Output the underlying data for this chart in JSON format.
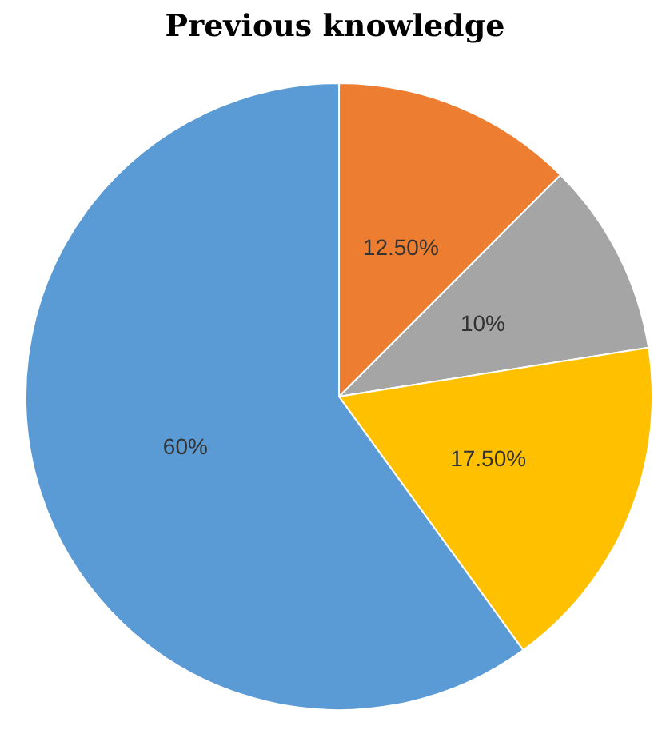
{
  "chart_data": {
    "type": "pie",
    "title": "Previous knowledge",
    "categories": [
      null,
      null,
      null,
      null
    ],
    "values": [
      12.5,
      10,
      17.5,
      60
    ],
    "colors": [
      "#ed7d31",
      "#a5a5a5",
      "#ffc000",
      "#5b9bd5"
    ],
    "value_labels": [
      "12.50%",
      "10%",
      "17.50%",
      "60%"
    ]
  }
}
